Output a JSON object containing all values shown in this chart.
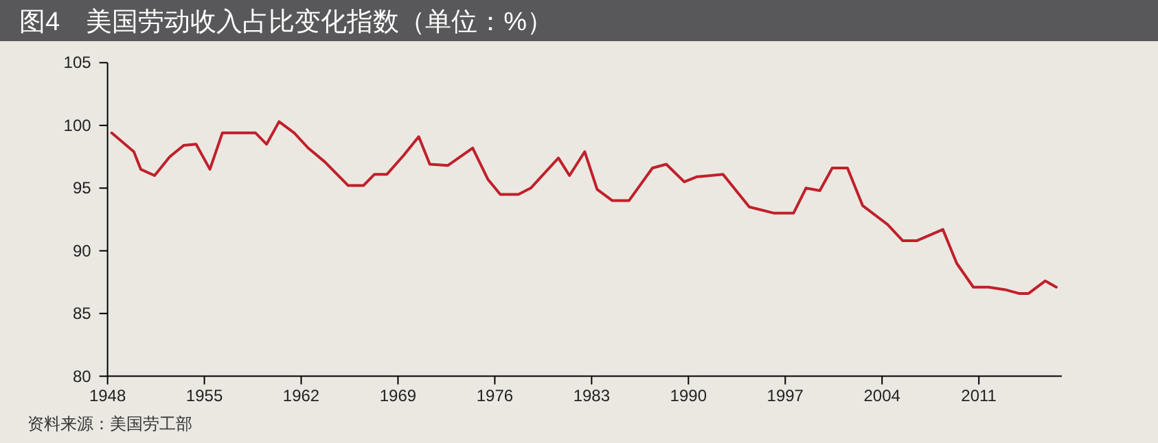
{
  "chart_data": {
    "type": "line",
    "title": "图4　美国劳动收入占比变化指数（单位：%）",
    "annotations": [
      "资料来源：美国劳工部"
    ],
    "x": [
      1948.3,
      1949.9,
      1950.4,
      1951.4,
      1952.5,
      1953.5,
      1954.4,
      1955.4,
      1956.3,
      1958.7,
      1959.5,
      1960.4,
      1961.5,
      1962.5,
      1963.7,
      1965.4,
      1966.5,
      1967.3,
      1968.2,
      1969.4,
      1970.5,
      1971.3,
      1972.6,
      1974.4,
      1975.5,
      1976.4,
      1977.7,
      1978.6,
      1980.6,
      1981.4,
      1982.5,
      1983.4,
      1984.5,
      1985.7,
      1987.4,
      1988.4,
      1989.7,
      1990.6,
      1992.5,
      1994.4,
      1996.2,
      1997.6,
      1998.5,
      1999.5,
      2000.4,
      2001.5,
      2002.6,
      2004.4,
      2005.5,
      2006.5,
      2008.4,
      2009.4,
      2010.6,
      2011.7,
      2012.9,
      2013.9,
      2014.6,
      2015.8,
      2016.6
    ],
    "values": [
      99.4,
      97.9,
      96.5,
      96.0,
      97.5,
      98.4,
      98.5,
      96.5,
      99.4,
      99.4,
      98.5,
      100.3,
      99.4,
      98.2,
      97.1,
      95.2,
      95.2,
      96.1,
      96.1,
      97.6,
      99.1,
      96.9,
      96.8,
      98.2,
      95.7,
      94.5,
      94.5,
      95.0,
      97.4,
      96.0,
      97.9,
      94.9,
      94.0,
      94.0,
      96.6,
      96.9,
      95.5,
      95.9,
      96.1,
      93.5,
      93.0,
      93.0,
      95.0,
      94.8,
      96.6,
      96.6,
      93.6,
      92.1,
      90.8,
      90.8,
      91.7,
      89.0,
      87.1,
      87.1,
      86.9,
      86.6,
      86.6,
      87.6,
      87.1
    ],
    "color": "#c0202a",
    "xlim": [
      1948,
      2017
    ],
    "xticks": [
      1948,
      1955,
      1962,
      1969,
      1976,
      1983,
      1990,
      1997,
      2004,
      2011
    ],
    "ylim": [
      80,
      105
    ],
    "yticks": [
      80,
      85,
      90,
      95,
      100,
      105
    ]
  }
}
